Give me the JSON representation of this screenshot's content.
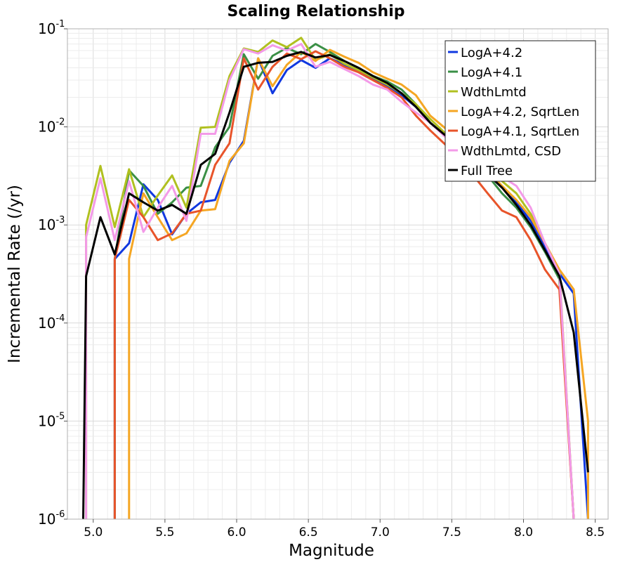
{
  "chart_data": {
    "type": "line",
    "title": "Scaling Relationship",
    "xlabel": "Magnitude",
    "ylabel": "Incremental Rate (/yr)",
    "xlim": [
      4.82,
      8.59
    ],
    "ylim": [
      1e-06,
      0.1
    ],
    "yscale": "log",
    "grid": true,
    "legend_position": "top-right",
    "xticks": [
      "5.0",
      "5.5",
      "6.0",
      "6.5",
      "7.0",
      "7.5",
      "8.0",
      "8.5"
    ],
    "xtick_values": [
      5.0,
      5.5,
      6.0,
      6.5,
      7.0,
      7.5,
      8.0,
      8.5
    ],
    "yticks": [
      {
        "base": "10",
        "exp": "-6",
        "value": 1e-06
      },
      {
        "base": "10",
        "exp": "-5",
        "value": 1e-05
      },
      {
        "base": "10",
        "exp": "-4",
        "value": 0.0001
      },
      {
        "base": "10",
        "exp": "-3",
        "value": 0.001
      },
      {
        "base": "10",
        "exp": "-2",
        "value": 0.01
      },
      {
        "base": "10",
        "exp": "-1",
        "value": 0.1
      }
    ],
    "series": [
      {
        "name": "LogA+4.2",
        "color": "#1038e0",
        "points": [
          [
            5.15,
            1e-06
          ],
          [
            5.15,
            0.00045
          ],
          [
            5.25,
            0.00065
          ],
          [
            5.35,
            0.0026
          ],
          [
            5.45,
            0.0018
          ],
          [
            5.55,
            0.0008
          ],
          [
            5.65,
            0.0013
          ],
          [
            5.75,
            0.0017
          ],
          [
            5.85,
            0.0018
          ],
          [
            5.95,
            0.0043
          ],
          [
            6.05,
            0.0072
          ],
          [
            6.15,
            0.05
          ],
          [
            6.25,
            0.022
          ],
          [
            6.35,
            0.038
          ],
          [
            6.45,
            0.048
          ],
          [
            6.55,
            0.04
          ],
          [
            6.65,
            0.05
          ],
          [
            6.75,
            0.043
          ],
          [
            6.85,
            0.038
          ],
          [
            6.95,
            0.031
          ],
          [
            7.05,
            0.026
          ],
          [
            7.15,
            0.021
          ],
          [
            7.25,
            0.016
          ],
          [
            7.35,
            0.011
          ],
          [
            7.45,
            0.0083
          ],
          [
            7.55,
            0.0063
          ],
          [
            7.65,
            0.0044
          ],
          [
            7.75,
            0.0033
          ],
          [
            7.85,
            0.0024
          ],
          [
            7.95,
            0.0017
          ],
          [
            8.05,
            0.0011
          ],
          [
            8.15,
            0.0006
          ],
          [
            8.25,
            0.00032
          ],
          [
            8.35,
            0.0002
          ],
          [
            8.45,
            1e-06
          ]
        ]
      },
      {
        "name": "LogA+4.1",
        "color": "#3a8f45",
        "points": [
          [
            5.15,
            1e-06
          ],
          [
            5.15,
            0.00045
          ],
          [
            5.25,
            0.0036
          ],
          [
            5.35,
            0.0025
          ],
          [
            5.45,
            0.0013
          ],
          [
            5.55,
            0.0017
          ],
          [
            5.65,
            0.0024
          ],
          [
            5.75,
            0.0025
          ],
          [
            5.85,
            0.0062
          ],
          [
            5.95,
            0.01
          ],
          [
            6.05,
            0.055
          ],
          [
            6.15,
            0.031
          ],
          [
            6.25,
            0.053
          ],
          [
            6.35,
            0.064
          ],
          [
            6.45,
            0.055
          ],
          [
            6.55,
            0.07
          ],
          [
            6.65,
            0.058
          ],
          [
            6.75,
            0.047
          ],
          [
            6.85,
            0.04
          ],
          [
            6.95,
            0.033
          ],
          [
            7.05,
            0.029
          ],
          [
            7.15,
            0.024
          ],
          [
            7.25,
            0.017
          ],
          [
            7.35,
            0.011
          ],
          [
            7.45,
            0.0082
          ],
          [
            7.55,
            0.0062
          ],
          [
            7.65,
            0.0043
          ],
          [
            7.75,
            0.0032
          ],
          [
            7.85,
            0.0021
          ],
          [
            7.95,
            0.0015
          ],
          [
            8.05,
            0.00095
          ],
          [
            8.15,
            0.00053
          ],
          [
            8.25,
            0.00028
          ],
          [
            8.35,
            1e-06
          ]
        ]
      },
      {
        "name": "WdthLmtd",
        "color": "#b0c020",
        "points": [
          [
            4.95,
            1e-06
          ],
          [
            4.95,
            0.001
          ],
          [
            5.05,
            0.004
          ],
          [
            5.15,
            0.00095
          ],
          [
            5.25,
            0.0037
          ],
          [
            5.35,
            0.0012
          ],
          [
            5.45,
            0.002
          ],
          [
            5.55,
            0.0032
          ],
          [
            5.65,
            0.0015
          ],
          [
            5.75,
            0.0098
          ],
          [
            5.85,
            0.01
          ],
          [
            5.95,
            0.033
          ],
          [
            6.05,
            0.063
          ],
          [
            6.15,
            0.058
          ],
          [
            6.25,
            0.076
          ],
          [
            6.35,
            0.065
          ],
          [
            6.45,
            0.081
          ],
          [
            6.55,
            0.048
          ],
          [
            6.65,
            0.055
          ],
          [
            6.75,
            0.044
          ],
          [
            6.85,
            0.038
          ],
          [
            6.95,
            0.032
          ],
          [
            7.05,
            0.027
          ],
          [
            7.15,
            0.022
          ],
          [
            7.25,
            0.017
          ],
          [
            7.35,
            0.012
          ],
          [
            7.45,
            0.0087
          ],
          [
            7.55,
            0.0066
          ],
          [
            7.65,
            0.0052
          ],
          [
            7.75,
            0.0038
          ],
          [
            7.85,
            0.0028
          ],
          [
            7.95,
            0.0021
          ],
          [
            8.05,
            0.0013
          ],
          [
            8.15,
            0.00065
          ],
          [
            8.25,
            0.00034
          ],
          [
            8.35,
            1e-06
          ]
        ]
      },
      {
        "name": "LogA+4.2, SqrtLen",
        "color": "#f5a623",
        "points": [
          [
            5.25,
            1e-06
          ],
          [
            5.25,
            0.00045
          ],
          [
            5.35,
            0.0021
          ],
          [
            5.45,
            0.0012
          ],
          [
            5.55,
            0.0007
          ],
          [
            5.65,
            0.00082
          ],
          [
            5.75,
            0.0014
          ],
          [
            5.85,
            0.00145
          ],
          [
            5.95,
            0.0045
          ],
          [
            6.05,
            0.0068
          ],
          [
            6.15,
            0.05
          ],
          [
            6.25,
            0.026
          ],
          [
            6.35,
            0.043
          ],
          [
            6.45,
            0.058
          ],
          [
            6.55,
            0.047
          ],
          [
            6.65,
            0.061
          ],
          [
            6.75,
            0.052
          ],
          [
            6.85,
            0.045
          ],
          [
            6.95,
            0.036
          ],
          [
            7.05,
            0.031
          ],
          [
            7.15,
            0.027
          ],
          [
            7.25,
            0.021
          ],
          [
            7.35,
            0.013
          ],
          [
            7.45,
            0.0098
          ],
          [
            7.55,
            0.0073
          ],
          [
            7.65,
            0.0052
          ],
          [
            7.75,
            0.0036
          ],
          [
            7.85,
            0.0025
          ],
          [
            7.95,
            0.0018
          ],
          [
            8.05,
            0.0012
          ],
          [
            8.15,
            0.00065
          ],
          [
            8.25,
            0.00035
          ],
          [
            8.35,
            0.00022
          ],
          [
            8.45,
            1e-05
          ],
          [
            8.45,
            1e-06
          ]
        ]
      },
      {
        "name": "LogA+4.1, SqrtLen",
        "color": "#e8542a",
        "points": [
          [
            5.15,
            1e-06
          ],
          [
            5.15,
            0.00045
          ],
          [
            5.25,
            0.0018
          ],
          [
            5.35,
            0.0012
          ],
          [
            5.45,
            0.0007
          ],
          [
            5.55,
            0.00082
          ],
          [
            5.65,
            0.0013
          ],
          [
            5.75,
            0.0014
          ],
          [
            5.85,
            0.0041
          ],
          [
            5.95,
            0.0068
          ],
          [
            6.05,
            0.05
          ],
          [
            6.15,
            0.024
          ],
          [
            6.25,
            0.041
          ],
          [
            6.35,
            0.056
          ],
          [
            6.45,
            0.049
          ],
          [
            6.55,
            0.059
          ],
          [
            6.65,
            0.05
          ],
          [
            6.75,
            0.041
          ],
          [
            6.85,
            0.036
          ],
          [
            6.95,
            0.03
          ],
          [
            7.05,
            0.025
          ],
          [
            7.15,
            0.02
          ],
          [
            7.25,
            0.013
          ],
          [
            7.35,
            0.0092
          ],
          [
            7.45,
            0.0067
          ],
          [
            7.55,
            0.0047
          ],
          [
            7.65,
            0.0032
          ],
          [
            7.75,
            0.0021
          ],
          [
            7.85,
            0.0014
          ],
          [
            7.95,
            0.0012
          ],
          [
            8.05,
            0.0007
          ],
          [
            8.15,
            0.00035
          ],
          [
            8.25,
            0.00022
          ],
          [
            8.35,
            1e-06
          ]
        ]
      },
      {
        "name": "WdthLmtd, CSD",
        "color": "#f39ae8",
        "points": [
          [
            4.95,
            1e-06
          ],
          [
            4.95,
            0.00075
          ],
          [
            5.05,
            0.003
          ],
          [
            5.15,
            0.0007
          ],
          [
            5.25,
            0.0028
          ],
          [
            5.35,
            0.00085
          ],
          [
            5.45,
            0.0015
          ],
          [
            5.55,
            0.0025
          ],
          [
            5.65,
            0.0011
          ],
          [
            5.75,
            0.0085
          ],
          [
            5.85,
            0.0085
          ],
          [
            5.95,
            0.03
          ],
          [
            6.05,
            0.062
          ],
          [
            6.15,
            0.056
          ],
          [
            6.25,
            0.068
          ],
          [
            6.35,
            0.06
          ],
          [
            6.45,
            0.07
          ],
          [
            6.55,
            0.041
          ],
          [
            6.65,
            0.046
          ],
          [
            6.75,
            0.039
          ],
          [
            6.85,
            0.033
          ],
          [
            6.95,
            0.027
          ],
          [
            7.05,
            0.024
          ],
          [
            7.15,
            0.018
          ],
          [
            7.25,
            0.014
          ],
          [
            7.35,
            0.011
          ],
          [
            7.45,
            0.008
          ],
          [
            7.55,
            0.0063
          ],
          [
            7.65,
            0.0048
          ],
          [
            7.75,
            0.0037
          ],
          [
            7.85,
            0.0031
          ],
          [
            7.95,
            0.0025
          ],
          [
            8.05,
            0.0015
          ],
          [
            8.15,
            0.00065
          ],
          [
            8.25,
            0.00032
          ],
          [
            8.35,
            1e-06
          ]
        ]
      },
      {
        "name": "Full Tree",
        "color": "#000000",
        "points": [
          [
            4.93,
            1e-06
          ],
          [
            4.95,
            0.0003
          ],
          [
            5.05,
            0.0012
          ],
          [
            5.15,
            0.0005
          ],
          [
            5.25,
            0.0021
          ],
          [
            5.35,
            0.0017
          ],
          [
            5.45,
            0.0014
          ],
          [
            5.55,
            0.0016
          ],
          [
            5.65,
            0.0013
          ],
          [
            5.75,
            0.0041
          ],
          [
            5.85,
            0.0053
          ],
          [
            5.95,
            0.014
          ],
          [
            6.05,
            0.041
          ],
          [
            6.15,
            0.045
          ],
          [
            6.25,
            0.046
          ],
          [
            6.35,
            0.053
          ],
          [
            6.45,
            0.058
          ],
          [
            6.55,
            0.051
          ],
          [
            6.65,
            0.054
          ],
          [
            6.75,
            0.047
          ],
          [
            6.85,
            0.04
          ],
          [
            6.95,
            0.033
          ],
          [
            7.05,
            0.028
          ],
          [
            7.15,
            0.022
          ],
          [
            7.25,
            0.016
          ],
          [
            7.35,
            0.011
          ],
          [
            7.45,
            0.0083
          ],
          [
            7.55,
            0.0063
          ],
          [
            7.65,
            0.0047
          ],
          [
            7.75,
            0.0033
          ],
          [
            7.85,
            0.0024
          ],
          [
            7.95,
            0.0016
          ],
          [
            8.05,
            0.001
          ],
          [
            8.15,
            0.00055
          ],
          [
            8.25,
            0.0003
          ],
          [
            8.35,
            8e-05
          ],
          [
            8.45,
            3e-06
          ]
        ]
      }
    ]
  }
}
